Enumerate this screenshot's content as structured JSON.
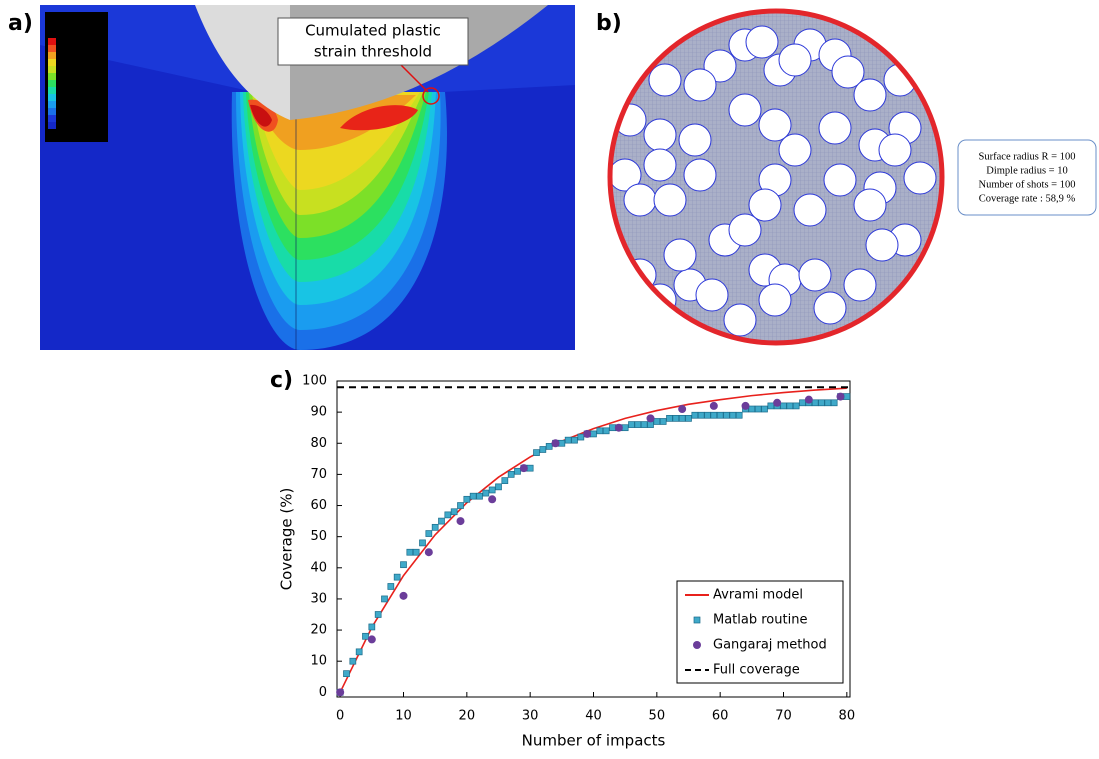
{
  "panels": {
    "a": "a)",
    "b": "b)",
    "c": "c)"
  },
  "fea": {
    "callout": [
      "Cumulated plastic",
      "strain threshold"
    ]
  },
  "simulation": {
    "info": [
      "Surface radius R = 100",
      "Dimple radius = 10",
      "Number of shots = 100",
      "Coverage rate : 58,9 %"
    ]
  },
  "chart_data": {
    "type": "line",
    "x_label": "Number of impacts",
    "y_label": "Coverage (%)",
    "xlim": [
      -0.5,
      80.5
    ],
    "ylim": [
      -1.5,
      100
    ],
    "xticks": [
      0,
      10,
      20,
      30,
      40,
      50,
      60,
      70,
      80
    ],
    "yticks": [
      0,
      10,
      20,
      30,
      40,
      50,
      60,
      70,
      80,
      90,
      100
    ],
    "grid": false,
    "legend": "lower right",
    "series": [
      {
        "name": "Avrami model",
        "color": "#e8211c",
        "mark": "line",
        "x": [
          0,
          5,
          10,
          15,
          20,
          25,
          30,
          35,
          40,
          45,
          50,
          55,
          60,
          65,
          70,
          75,
          80
        ],
        "values": [
          0,
          20.9,
          37.5,
          50.6,
          60.9,
          69.1,
          75.6,
          80.7,
          84.7,
          88.0,
          90.5,
          92.5,
          94.0,
          95.3,
          96.3,
          97.1,
          97.7
        ]
      },
      {
        "name": "Matlab routine",
        "color": "#3fa9c9",
        "mark": "square",
        "x": [
          0,
          1,
          2,
          3,
          4,
          5,
          6,
          7,
          8,
          9,
          10,
          11,
          12,
          13,
          14,
          15,
          16,
          17,
          18,
          19,
          20,
          21,
          22,
          23,
          24,
          25,
          26,
          27,
          28,
          29,
          30,
          31,
          32,
          33,
          34,
          35,
          36,
          37,
          38,
          39,
          40,
          41,
          42,
          43,
          44,
          45,
          46,
          47,
          48,
          49,
          50,
          51,
          52,
          53,
          54,
          55,
          56,
          57,
          58,
          59,
          60,
          61,
          62,
          63,
          64,
          65,
          66,
          67,
          68,
          69,
          70,
          71,
          72,
          73,
          74,
          75,
          76,
          77,
          78,
          79,
          80
        ],
        "values": [
          0,
          6,
          10,
          13,
          18,
          21,
          25,
          30,
          34,
          37,
          41,
          45,
          45,
          48,
          51,
          53,
          55,
          57,
          58,
          60,
          62,
          63,
          63,
          64,
          65,
          66,
          68,
          70,
          71,
          72,
          72,
          77,
          78,
          79,
          80,
          80,
          81,
          81,
          82,
          83,
          83,
          84,
          84,
          85,
          85,
          85,
          86,
          86,
          86,
          86,
          87,
          87,
          88,
          88,
          88,
          88,
          89,
          89,
          89,
          89,
          89,
          89,
          89,
          89,
          91,
          91,
          91,
          91,
          92,
          92,
          92,
          92,
          92,
          93,
          93,
          93,
          93,
          93,
          93,
          95,
          95
        ]
      },
      {
        "name": "Gangaraj method",
        "color": "#6b3d9a",
        "mark": "circle",
        "x": [
          0,
          5,
          10,
          14,
          19,
          24,
          29,
          34,
          39,
          44,
          49,
          54,
          59,
          64,
          69,
          74,
          79
        ],
        "values": [
          0,
          17,
          31,
          45,
          55,
          62,
          72,
          80,
          83,
          85,
          88,
          91,
          92,
          92,
          93,
          94,
          95
        ]
      },
      {
        "name": "Full coverage",
        "color": "#000000",
        "mark": "line",
        "dash": true,
        "x": [
          -0.5,
          80.5
        ],
        "values": [
          98,
          98
        ]
      }
    ]
  }
}
